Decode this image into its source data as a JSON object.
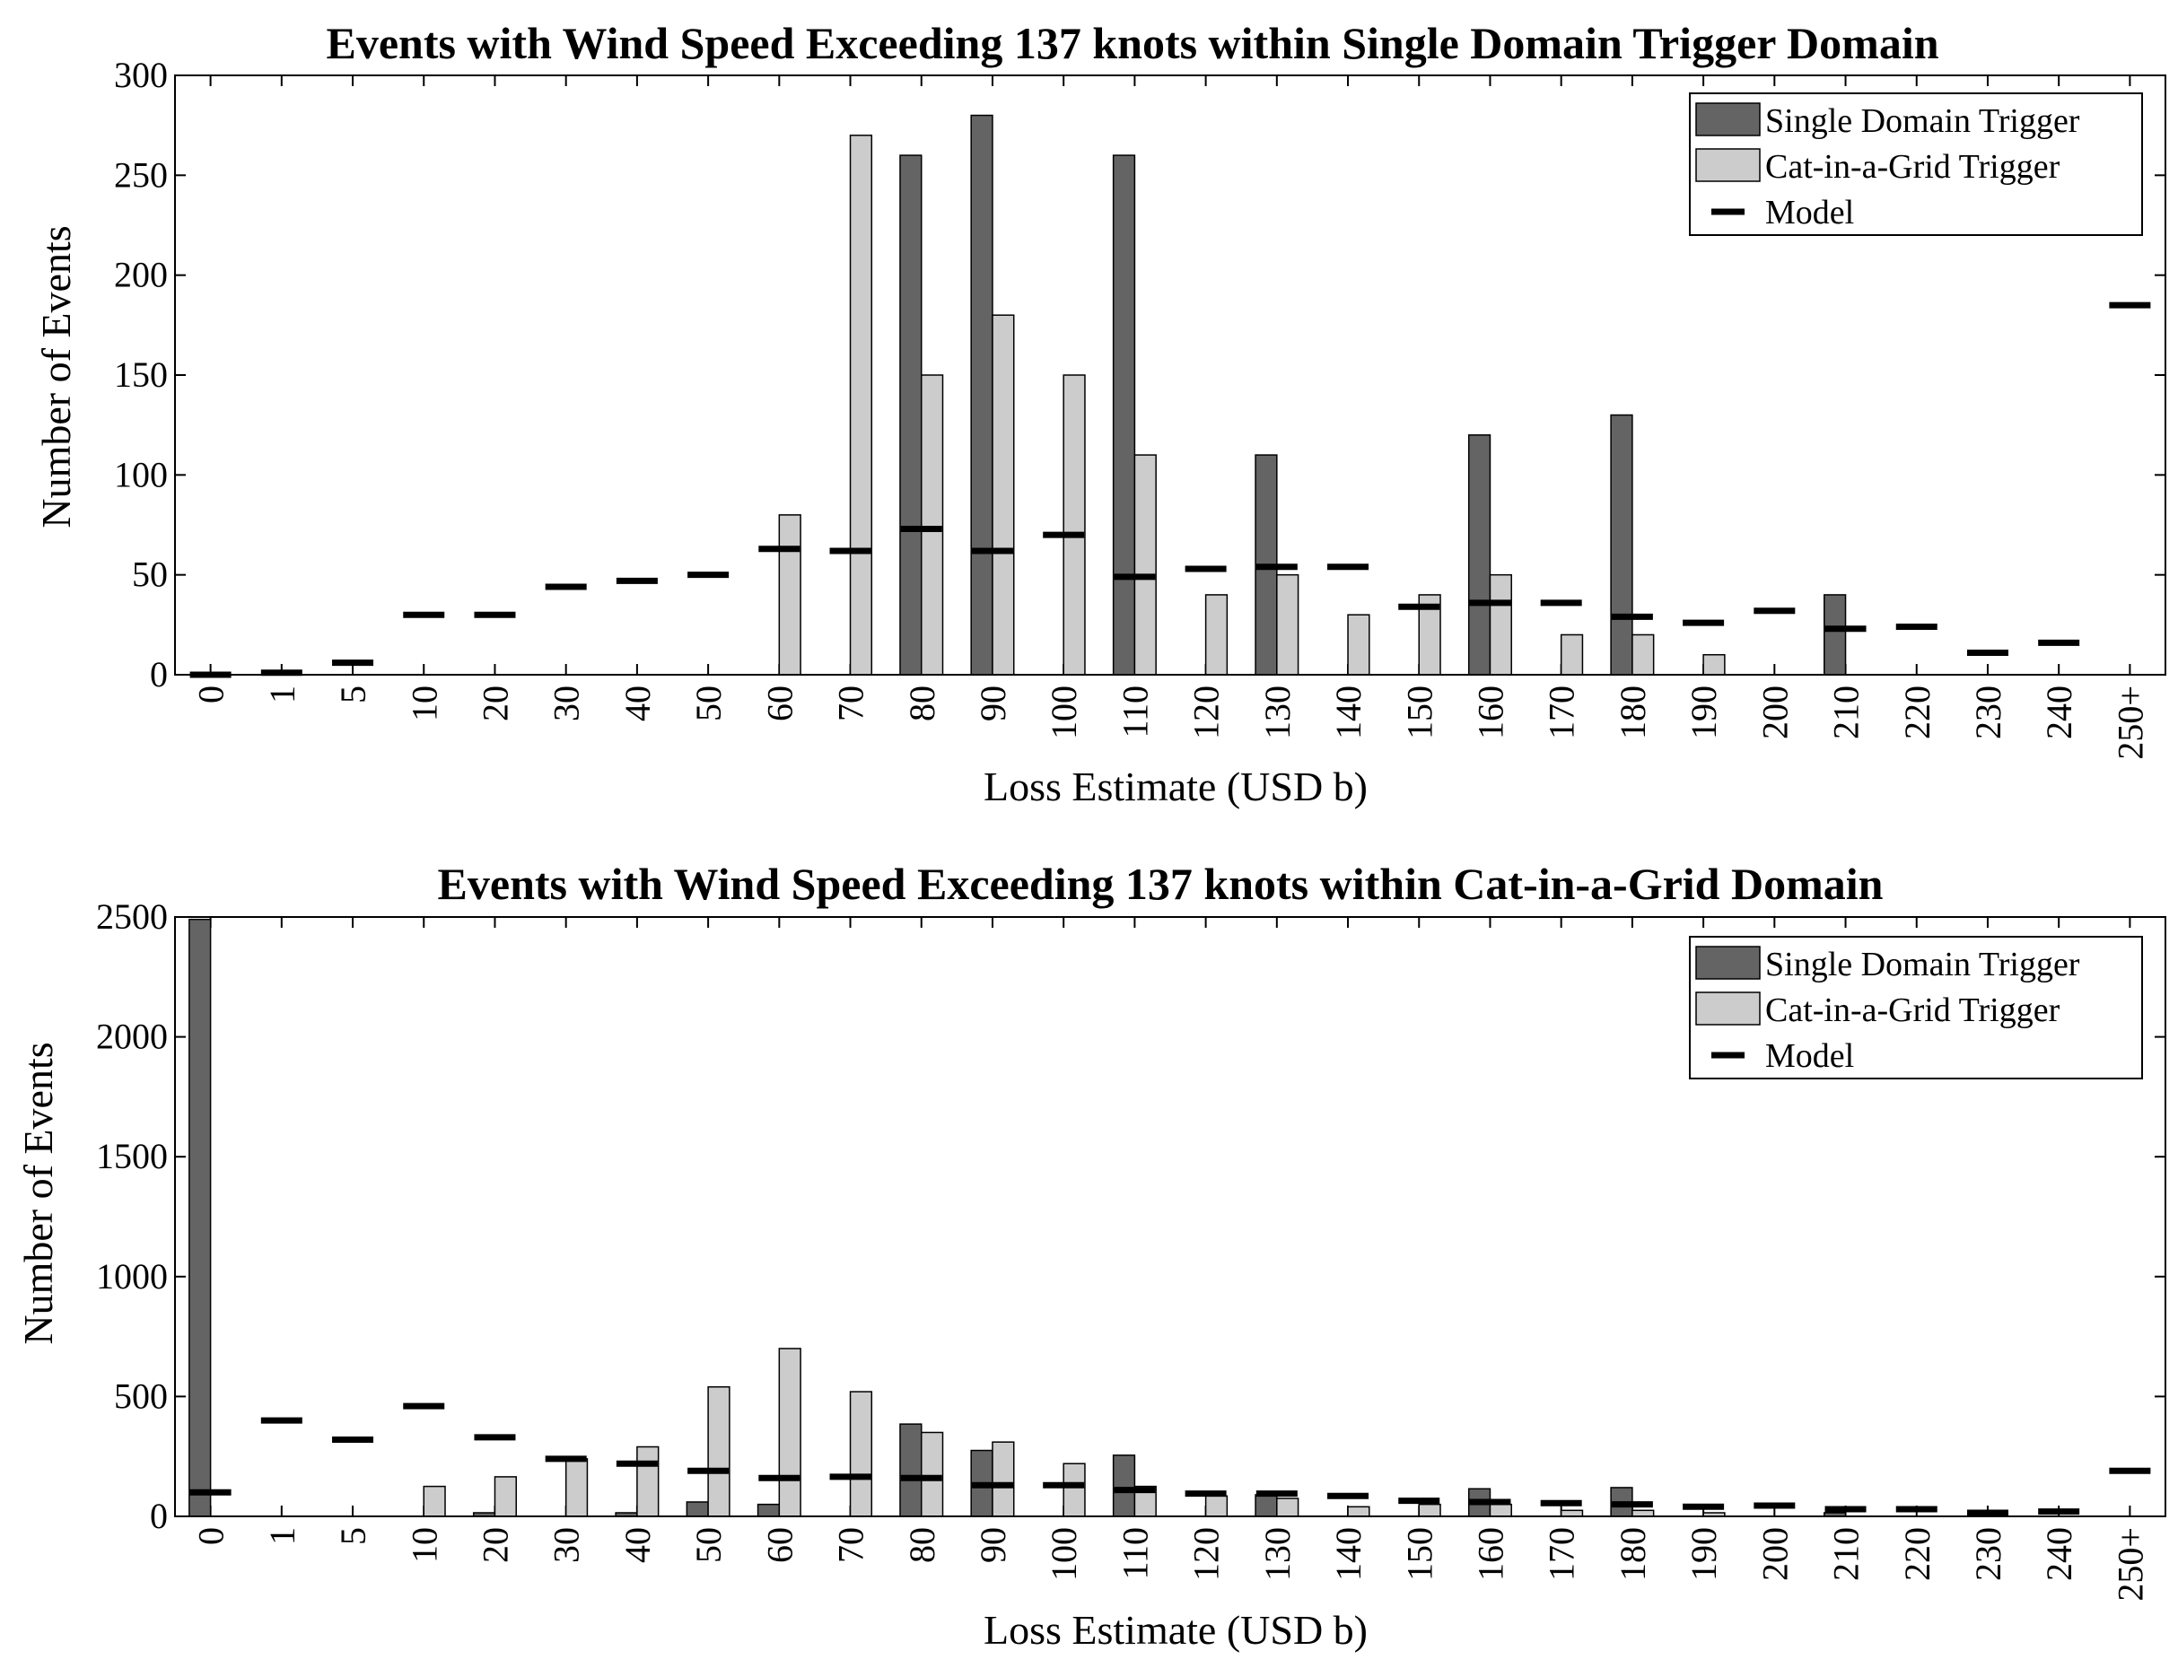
{
  "colors": {
    "single": "#646464",
    "cat": "#cccccc",
    "model": "#000000"
  },
  "legend": [
    "Single Domain Trigger",
    "Cat-in-a-Grid Trigger",
    "Model"
  ],
  "chart_data": [
    {
      "type": "bar",
      "title": "Events with Wind Speed Exceeding 137 knots within Single Domain Trigger Domain",
      "xlabel": "Loss Estimate (USD b)",
      "ylabel": "Number of Events",
      "ylim": [
        0,
        300
      ],
      "yticks": [
        0,
        50,
        100,
        150,
        200,
        250,
        300
      ],
      "categories": [
        "0",
        "1",
        "5",
        "10",
        "20",
        "30",
        "40",
        "50",
        "60",
        "70",
        "80",
        "90",
        "100",
        "110",
        "120",
        "130",
        "140",
        "150",
        "160",
        "170",
        "180",
        "190",
        "200",
        "210",
        "220",
        "230",
        "240",
        "250+"
      ],
      "series": [
        {
          "name": "Single Domain Trigger",
          "kind": "bar",
          "values": [
            0,
            0,
            0,
            0,
            0,
            0,
            0,
            0,
            0,
            0,
            260,
            280,
            0,
            260,
            0,
            110,
            0,
            0,
            120,
            0,
            130,
            0,
            0,
            40,
            0,
            0,
            0,
            0
          ]
        },
        {
          "name": "Cat-in-a-Grid Trigger",
          "kind": "bar",
          "values": [
            0,
            0,
            0,
            0,
            0,
            0,
            0,
            0,
            80,
            270,
            150,
            180,
            150,
            110,
            40,
            50,
            30,
            40,
            50,
            20,
            20,
            10,
            0,
            0,
            0,
            0,
            0,
            0
          ]
        },
        {
          "name": "Model",
          "kind": "marker",
          "values": [
            0,
            1,
            6,
            30,
            30,
            44,
            47,
            50,
            63,
            62,
            73,
            62,
            70,
            49,
            53,
            54,
            54,
            34,
            36,
            36,
            29,
            26,
            32,
            23,
            24,
            11,
            16,
            185
          ]
        }
      ]
    },
    {
      "type": "bar",
      "title": "Events with Wind Speed Exceeding 137 knots within Cat-in-a-Grid Domain",
      "xlabel": "Loss Estimate (USD b)",
      "ylabel": "Number of Events",
      "ylim": [
        0,
        2500
      ],
      "yticks": [
        0,
        500,
        1000,
        1500,
        2000,
        2500
      ],
      "categories": [
        "0",
        "1",
        "5",
        "10",
        "20",
        "30",
        "40",
        "50",
        "60",
        "70",
        "80",
        "90",
        "100",
        "110",
        "120",
        "130",
        "140",
        "150",
        "160",
        "170",
        "180",
        "190",
        "200",
        "210",
        "220",
        "230",
        "240",
        "250+"
      ],
      "series": [
        {
          "name": "Single Domain Trigger",
          "kind": "bar",
          "values": [
            2490,
            0,
            0,
            0,
            15,
            0,
            15,
            60,
            50,
            0,
            385,
            275,
            0,
            255,
            0,
            90,
            0,
            0,
            115,
            0,
            120,
            0,
            0,
            15,
            0,
            0,
            0,
            0
          ]
        },
        {
          "name": "Cat-in-a-Grid Trigger",
          "kind": "bar",
          "values": [
            0,
            0,
            0,
            125,
            165,
            240,
            290,
            540,
            700,
            520,
            350,
            310,
            220,
            125,
            85,
            75,
            40,
            50,
            50,
            25,
            25,
            15,
            0,
            0,
            0,
            0,
            0,
            0
          ]
        },
        {
          "name": "Model",
          "kind": "marker",
          "values": [
            100,
            400,
            320,
            460,
            330,
            240,
            220,
            190,
            160,
            165,
            160,
            130,
            130,
            110,
            95,
            95,
            85,
            65,
            60,
            55,
            50,
            40,
            45,
            30,
            30,
            15,
            20,
            190
          ]
        }
      ]
    }
  ]
}
